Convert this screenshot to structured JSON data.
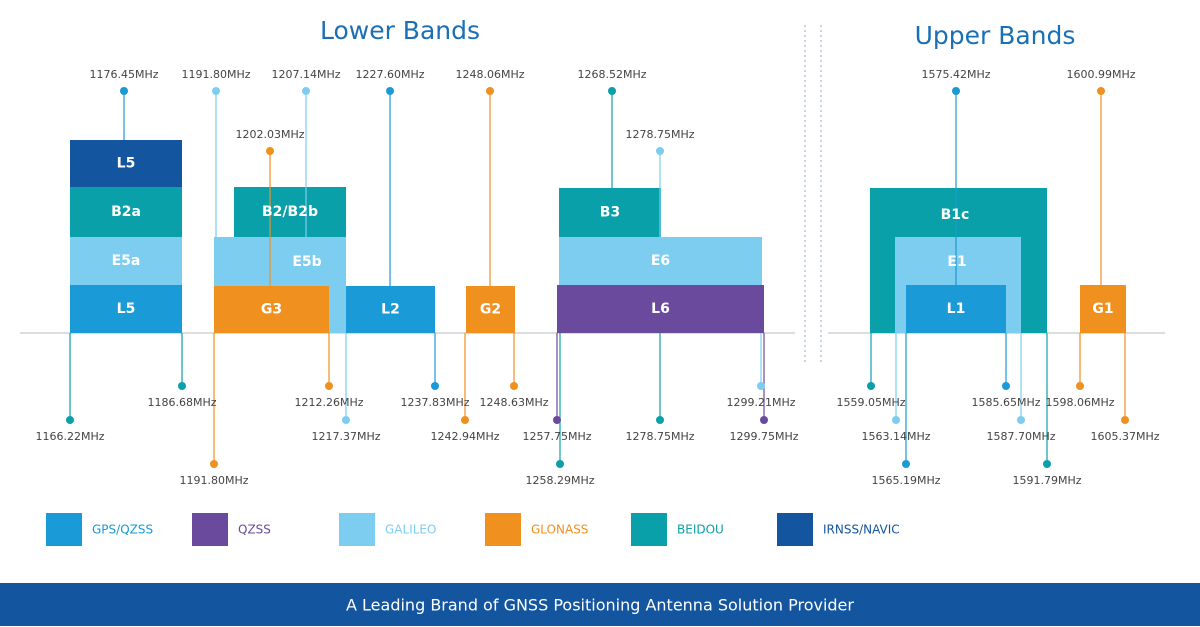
{
  "titles": {
    "lower": "Lower Bands",
    "upper": "Upper Bands"
  },
  "blocks": [
    "L5",
    "B2a",
    "E5a",
    "L5",
    "B2/B2b",
    "E5b",
    "G3",
    "L2",
    "G2",
    "B3",
    "E6",
    "L6",
    "B1c",
    "E1",
    "L1",
    "G1"
  ],
  "frequencies": [
    "1176.45MHz",
    "1191.80MHz",
    "1207.14MHz",
    "1227.60MHz",
    "1248.06MHz",
    "1268.52MHz",
    "1202.03MHz",
    "1278.75MHz",
    "1575.42MHz",
    "1600.99MHz",
    "1166.22MHz",
    "1186.68MHz",
    "1191.80MHz",
    "1212.26MHz",
    "1217.37MHz",
    "1237.83MHz",
    "1242.94MHz",
    "1248.63MHz",
    "1257.75MHz",
    "1258.29MHz",
    "1278.75MHz",
    "1299.21MHz",
    "1299.75MHz",
    "1559.05MHz",
    "1563.14MHz",
    "1565.19MHz",
    "1585.65MHz",
    "1587.70MHz",
    "1591.79MHz",
    "1598.06MHz",
    "1605.37MHz"
  ],
  "legend": [
    "GPS/QZSS",
    "QZSS",
    "GALILEO",
    "GLONASS",
    "BEIDOU",
    "IRNSS/NAVIC"
  ],
  "footer": "A Leading Brand of GNSS Positioning Antenna Solution Provider"
}
